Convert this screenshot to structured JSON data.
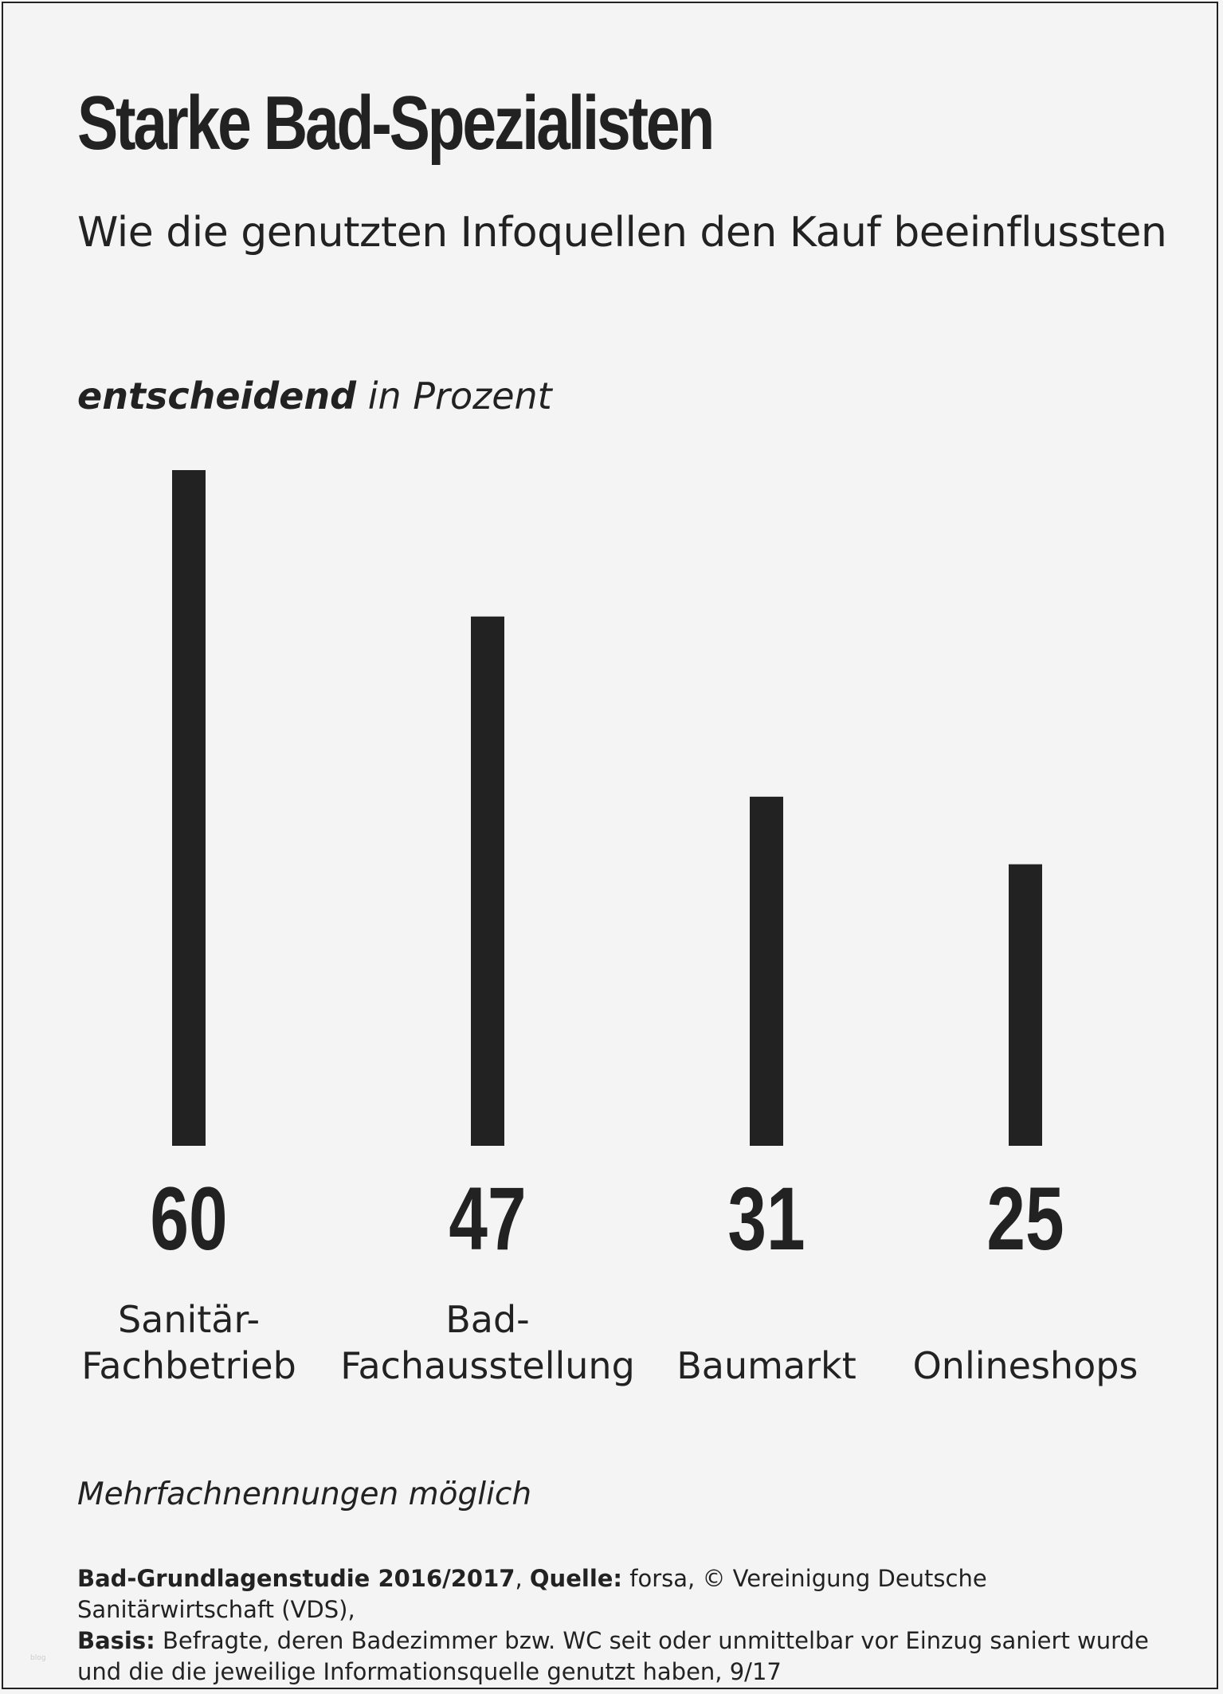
{
  "chart_data": {
    "type": "bar",
    "title": "Starke Bad-Spezialisten",
    "subtitle": "Wie die genutzten Infoquellen den Kauf beeinflussten",
    "unit_bold": "entscheidend",
    "unit_rest": " in Prozent",
    "categories": [
      [
        "Sanitär-",
        "Fachbetrieb"
      ],
      [
        "Bad-",
        "Fachausstellung"
      ],
      [
        "Baumarkt"
      ],
      [
        "Onlineshops"
      ]
    ],
    "values": [
      60,
      47,
      31,
      25
    ],
    "value_labels": [
      "60",
      "47",
      "31",
      "25"
    ],
    "ylim": [
      0,
      60
    ],
    "grid": false,
    "bar_color": "#222222"
  },
  "footer": {
    "note": "Mehrfachnennungen möglich",
    "study_label": "Bad-Grundlagenstudie 2016/2017",
    "sep1": ", ",
    "source_label": "Quelle:",
    "source_text": " forsa, © Vereinigung Deutsche Sanitärwirtschaft (VDS),",
    "basis_label": "Basis:",
    "basis_text": " Befragte, deren Badezimmer bzw. WC seit oder unmittelbar vor Einzug saniert wurde und die die jeweilige Informationsquelle genutzt haben, 9/17"
  }
}
